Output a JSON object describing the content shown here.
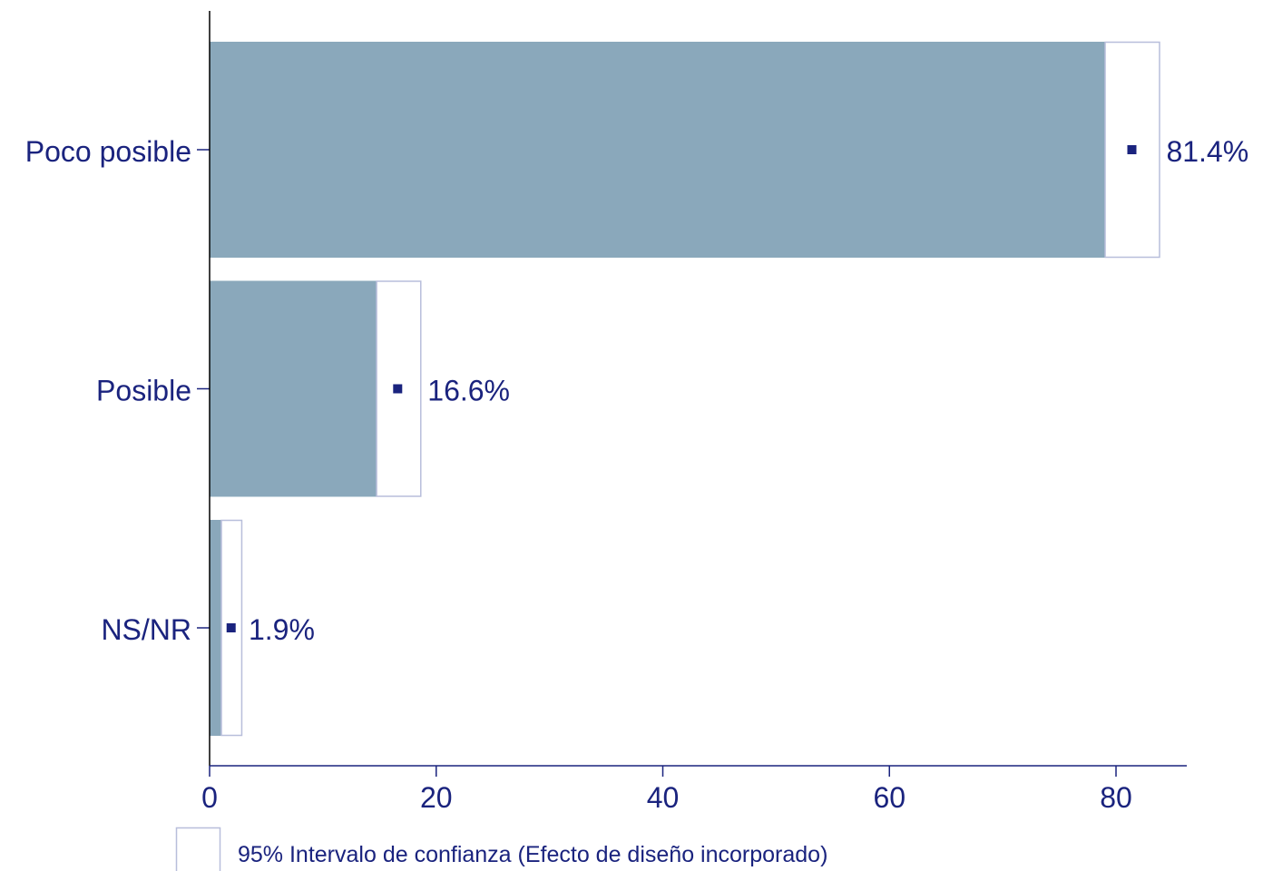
{
  "chart_data": {
    "type": "bar",
    "orientation": "horizontal",
    "categories": [
      "Poco posible",
      "Posible",
      "NS/NR"
    ],
    "values": [
      81.4,
      16.6,
      1.9
    ],
    "value_labels": [
      "81.4%",
      "16.6%",
      "1.9%"
    ],
    "ci_lower": [
      79.0,
      14.7,
      1.0
    ],
    "ci_upper": [
      83.8,
      18.6,
      2.8
    ],
    "xlim": [
      0,
      86
    ],
    "x_ticks": [
      0,
      20,
      40,
      60,
      80
    ],
    "grid": false,
    "legend": {
      "position": "bottom",
      "label": "95% Intervalo de confianza (Efecto de diseño incorporado)"
    },
    "colors": {
      "bar": "#8aa8bb",
      "ci_fill": "#ffffff",
      "ci_border": "#b8bedb",
      "marker": "#1a237e",
      "text": "#1a237e",
      "axis": "#1a237e",
      "axis_y": "#000000"
    }
  }
}
